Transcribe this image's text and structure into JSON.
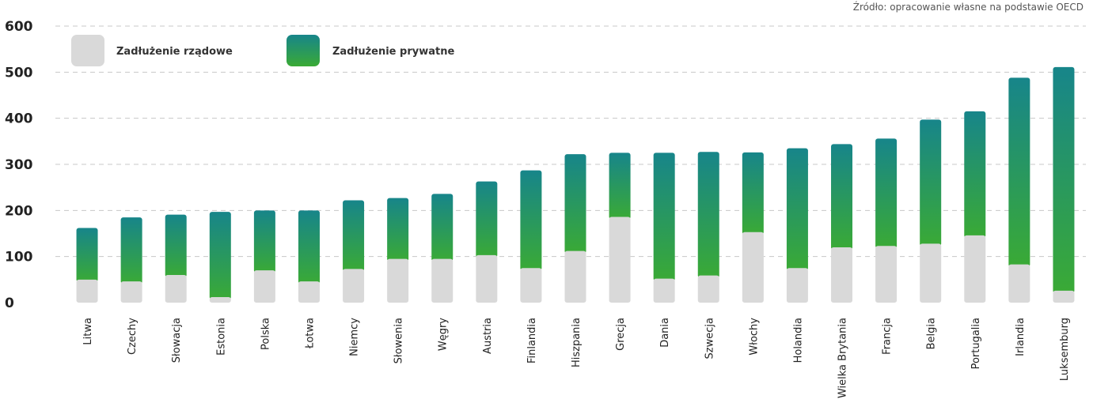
{
  "source_note": "Źródło: opracowanie własne na podstawie OECD",
  "chart_data": {
    "type": "bar",
    "stacked": true,
    "categories": [
      "Litwa",
      "Czechy",
      "Słowacja",
      "Estonia",
      "Polska",
      "Łotwa",
      "Niemcy",
      "Słowenia",
      "Węgry",
      "Austria",
      "Finlandia",
      "Hiszpania",
      "Grecja",
      "Dania",
      "Szwecja",
      "Włochy",
      "Holandia",
      "Wielka Brytania",
      "Francja",
      "Belgia",
      "Portugalia",
      "Irlandia",
      "Luksemburg"
    ],
    "series": [
      {
        "name": "Zadłużenie rządowe",
        "color": "#d9d9d9",
        "values": [
          50,
          46,
          60,
          12,
          70,
          46,
          73,
          95,
          95,
          103,
          75,
          112,
          186,
          52,
          59,
          153,
          75,
          120,
          123,
          128,
          146,
          83,
          26
        ]
      },
      {
        "name": "Zadłużenie prywatne",
        "colors": [
          "#3aaa35",
          "#17858a"
        ],
        "values": [
          112,
          139,
          131,
          185,
          130,
          154,
          149,
          132,
          141,
          160,
          212,
          210,
          139,
          273,
          268,
          173,
          260,
          224,
          233,
          269,
          269,
          405,
          485
        ]
      }
    ],
    "ylim": [
      0,
      600
    ],
    "yticks": [
      0,
      100,
      200,
      300,
      400,
      500,
      600
    ],
    "grid": true,
    "legend": "top-left"
  }
}
